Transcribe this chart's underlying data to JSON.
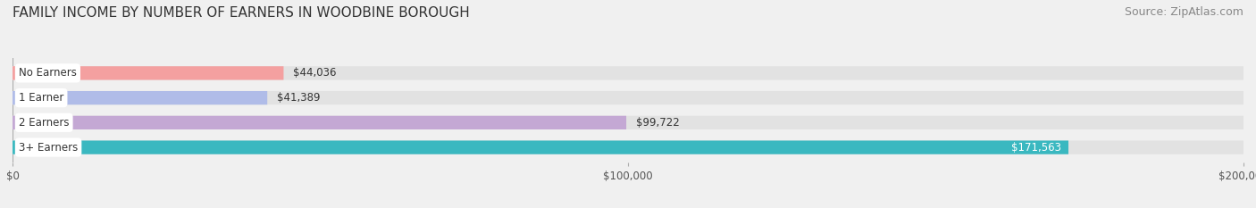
{
  "title": "FAMILY INCOME BY NUMBER OF EARNERS IN WOODBINE BOROUGH",
  "source": "Source: ZipAtlas.com",
  "categories": [
    "No Earners",
    "1 Earner",
    "2 Earners",
    "3+ Earners"
  ],
  "values": [
    44036,
    41389,
    99722,
    171563
  ],
  "bar_colors": [
    "#f4a0a0",
    "#b0bce8",
    "#c4a8d4",
    "#3ab8c0"
  ],
  "label_colors": [
    "#333333",
    "#333333",
    "#333333",
    "#ffffff"
  ],
  "xlim": [
    0,
    200000
  ],
  "xticks": [
    0,
    100000,
    200000
  ],
  "xtick_labels": [
    "$0",
    "$100,000",
    "$200,000"
  ],
  "background_color": "#f0f0f0",
  "bar_bg_color": "#e2e2e2",
  "title_fontsize": 11,
  "source_fontsize": 9,
  "bar_height": 0.55,
  "label_box_color": "#ffffff"
}
